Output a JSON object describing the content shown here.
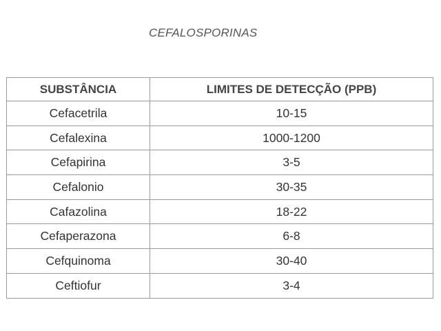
{
  "title": "CEFALOSPORINAS",
  "table": {
    "headers": [
      "SUBSTÂNCIA",
      "LIMITES DE DETECÇÃO (PPB)"
    ],
    "rows": [
      [
        "Cefacetrila",
        "10-15"
      ],
      [
        "Cefalexina",
        "1000-1200"
      ],
      [
        "Cefapirina",
        "3-5"
      ],
      [
        "Cefalonio",
        "30-35"
      ],
      [
        "Cafazolina",
        "18-22"
      ],
      [
        "Cefaperazona",
        "6-8"
      ],
      [
        "Cefquinoma",
        "30-40"
      ],
      [
        "Ceftiofur",
        "3-4"
      ]
    ]
  }
}
